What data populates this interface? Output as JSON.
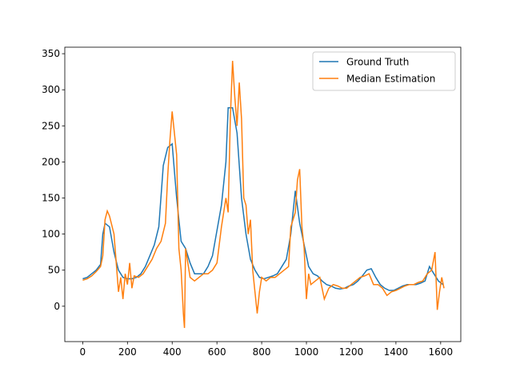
{
  "chart_data": {
    "type": "line",
    "series": [
      {
        "name": "Ground Truth",
        "color": "#1f77b4",
        "x": [
          0,
          20,
          40,
          60,
          80,
          90,
          100,
          120,
          140,
          160,
          180,
          200,
          220,
          240,
          260,
          280,
          300,
          320,
          340,
          360,
          380,
          400,
          420,
          440,
          460,
          480,
          500,
          520,
          540,
          560,
          580,
          600,
          620,
          640,
          650,
          670,
          690,
          710,
          730,
          750,
          770,
          790,
          810,
          830,
          850,
          870,
          890,
          910,
          930,
          950,
          970,
          990,
          1010,
          1030,
          1050,
          1070,
          1090,
          1110,
          1130,
          1150,
          1170,
          1190,
          1210,
          1230,
          1250,
          1270,
          1290,
          1310,
          1330,
          1350,
          1370,
          1390,
          1410,
          1430,
          1450,
          1470,
          1490,
          1510,
          1530,
          1550,
          1570,
          1590,
          1610
        ],
        "values": [
          38,
          40,
          45,
          50,
          58,
          100,
          115,
          110,
          75,
          50,
          40,
          38,
          38,
          40,
          45,
          55,
          70,
          85,
          110,
          195,
          220,
          225,
          150,
          90,
          80,
          60,
          45,
          45,
          45,
          55,
          70,
          105,
          140,
          200,
          275,
          275,
          240,
          150,
          100,
          65,
          50,
          40,
          38,
          40,
          42,
          45,
          55,
          65,
          100,
          160,
          115,
          85,
          55,
          45,
          42,
          35,
          30,
          28,
          25,
          24,
          25,
          28,
          30,
          35,
          42,
          50,
          52,
          40,
          30,
          25,
          22,
          22,
          25,
          28,
          30,
          30,
          30,
          32,
          35,
          55,
          45,
          35,
          30
        ]
      },
      {
        "name": "Median Estimation",
        "color": "#ff7f0e",
        "x": [
          0,
          20,
          40,
          60,
          80,
          90,
          100,
          110,
          120,
          140,
          150,
          160,
          170,
          180,
          190,
          200,
          210,
          220,
          230,
          250,
          270,
          290,
          310,
          330,
          350,
          370,
          380,
          390,
          400,
          410,
          420,
          430,
          440,
          450,
          455,
          460,
          470,
          480,
          500,
          520,
          540,
          560,
          580,
          600,
          620,
          640,
          650,
          660,
          670,
          680,
          690,
          700,
          710,
          720,
          730,
          740,
          750,
          760,
          770,
          780,
          790,
          800,
          820,
          840,
          860,
          880,
          900,
          920,
          930,
          950,
          960,
          970,
          980,
          990,
          1000,
          1010,
          1020,
          1040,
          1060,
          1080,
          1100,
          1120,
          1140,
          1160,
          1180,
          1200,
          1220,
          1240,
          1260,
          1280,
          1300,
          1320,
          1340,
          1360,
          1380,
          1400,
          1420,
          1440,
          1460,
          1480,
          1500,
          1520,
          1540,
          1560,
          1575,
          1585,
          1595,
          1605,
          1615
        ],
        "values": [
          36,
          38,
          42,
          48,
          55,
          70,
          120,
          132,
          125,
          100,
          60,
          20,
          40,
          10,
          45,
          30,
          60,
          25,
          42,
          40,
          45,
          55,
          65,
          80,
          90,
          115,
          180,
          230,
          270,
          240,
          210,
          80,
          50,
          -10,
          -30,
          80,
          60,
          40,
          35,
          40,
          45,
          45,
          50,
          60,
          110,
          150,
          130,
          260,
          340,
          290,
          250,
          310,
          260,
          150,
          140,
          100,
          120,
          50,
          20,
          -10,
          20,
          40,
          35,
          40,
          40,
          45,
          50,
          55,
          110,
          130,
          175,
          190,
          110,
          80,
          10,
          45,
          30,
          35,
          40,
          10,
          25,
          30,
          28,
          25,
          25,
          30,
          35,
          40,
          42,
          45,
          30,
          30,
          25,
          15,
          20,
          22,
          25,
          28,
          30,
          30,
          33,
          35,
          45,
          50,
          75,
          -5,
          20,
          40,
          25
        ]
      }
    ],
    "xlim": [
      -80,
      1690
    ],
    "ylim": [
      -49,
      359
    ],
    "xticks": [
      0,
      200,
      400,
      600,
      800,
      1000,
      1200,
      1400,
      1600
    ],
    "yticks": [
      0,
      50,
      100,
      150,
      200,
      250,
      300,
      350
    ],
    "legend": "upper right"
  }
}
